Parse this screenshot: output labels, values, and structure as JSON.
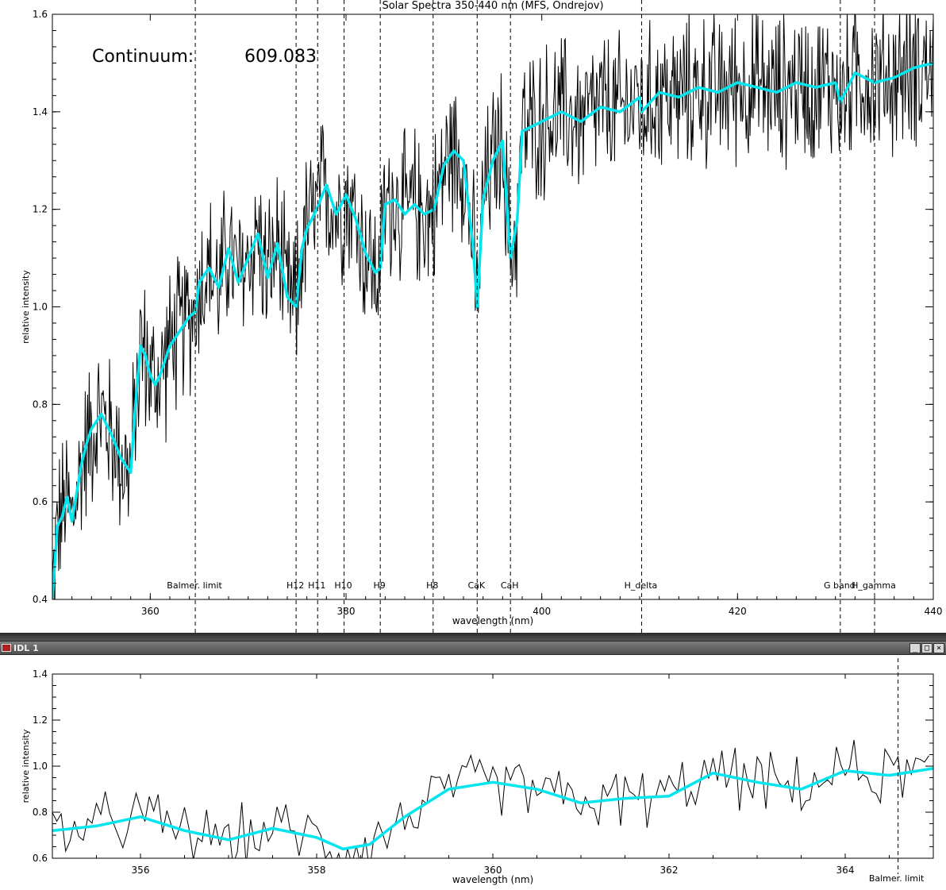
{
  "window": {
    "title": "IDL 1",
    "buttons": [
      "_",
      "□",
      "×"
    ]
  },
  "chart_data": [
    {
      "type": "line",
      "title": "Solar Spectra 350-440 nm (MFS, Ondrejov)",
      "xlabel": "wavelength (nm)",
      "ylabel": "relative intensity",
      "xlim": [
        350,
        440
      ],
      "ylim": [
        0.4,
        1.6
      ],
      "xticks": [
        360,
        380,
        400,
        420,
        440
      ],
      "yticks": [
        0.4,
        0.6,
        0.8,
        1.0,
        1.2,
        1.4,
        1.6
      ],
      "annotation": {
        "label": "Continuum:",
        "value": "609.083"
      },
      "vlines": [
        {
          "x": 364.6,
          "label": "Balmer. limit"
        },
        {
          "x": 374.9,
          "label": "H12"
        },
        {
          "x": 377.1,
          "label": "H11"
        },
        {
          "x": 379.8,
          "label": "H10"
        },
        {
          "x": 383.5,
          "label": "H9"
        },
        {
          "x": 388.9,
          "label": "H8"
        },
        {
          "x": 393.4,
          "label": "CaK"
        },
        {
          "x": 396.8,
          "label": "CaH"
        },
        {
          "x": 410.2,
          "label": "H_delta"
        },
        {
          "x": 430.5,
          "label": "G band"
        },
        {
          "x": 434.0,
          "label": "H_gamma"
        }
      ],
      "smooth_series": {
        "color": "#00e5ee",
        "x": [
          350,
          350.5,
          351,
          351.5,
          352,
          352.5,
          353,
          353.5,
          354,
          355,
          356,
          357,
          358,
          358.5,
          359,
          359.5,
          360,
          360.5,
          361,
          362,
          363,
          364,
          364.6,
          365,
          366,
          367,
          368,
          369,
          370,
          371,
          372,
          373,
          374,
          374.9,
          375.5,
          376,
          377,
          378,
          379,
          380,
          381,
          382,
          383,
          383.5,
          384,
          385,
          386,
          387,
          388,
          389,
          390,
          391,
          392,
          393,
          393.4,
          394,
          395,
          396,
          396.8,
          397.5,
          398,
          400,
          402,
          404,
          406,
          408,
          410,
          410.2,
          412,
          414,
          416,
          418,
          420,
          422,
          424,
          426,
          428,
          430,
          430.5,
          432,
          434,
          436,
          438,
          440
        ],
        "y": [
          0.4,
          0.55,
          0.57,
          0.61,
          0.56,
          0.62,
          0.68,
          0.72,
          0.75,
          0.78,
          0.74,
          0.69,
          0.66,
          0.8,
          0.92,
          0.9,
          0.86,
          0.84,
          0.86,
          0.92,
          0.95,
          0.98,
          0.99,
          1.05,
          1.08,
          1.04,
          1.12,
          1.05,
          1.1,
          1.15,
          1.06,
          1.13,
          1.02,
          1.0,
          1.12,
          1.16,
          1.2,
          1.25,
          1.19,
          1.23,
          1.18,
          1.11,
          1.07,
          1.08,
          1.21,
          1.22,
          1.19,
          1.21,
          1.19,
          1.2,
          1.29,
          1.32,
          1.3,
          1.12,
          1.0,
          1.22,
          1.3,
          1.34,
          1.1,
          1.18,
          1.36,
          1.38,
          1.4,
          1.38,
          1.41,
          1.4,
          1.43,
          1.4,
          1.44,
          1.43,
          1.45,
          1.44,
          1.46,
          1.45,
          1.44,
          1.46,
          1.45,
          1.46,
          1.42,
          1.48,
          1.46,
          1.47,
          1.49,
          1.5
        ]
      },
      "raw_series": {
        "color": "#000000",
        "description_note": "noisy spectrum"
      }
    },
    {
      "type": "line",
      "xlabel": "wavelength (nm)",
      "ylabel": "relative intensity",
      "xlim": [
        355,
        365
      ],
      "ylim": [
        0.6,
        1.4
      ],
      "xticks": [
        356,
        358,
        360,
        362,
        364
      ],
      "yticks": [
        0.6,
        0.8,
        1.0,
        1.2,
        1.4
      ],
      "vlines": [
        {
          "x": 364.6,
          "label": "Balmer. limit"
        }
      ],
      "smooth_series": {
        "color": "#00e5ee",
        "x": [
          355,
          355.5,
          356,
          356.5,
          357,
          357.5,
          358,
          358.3,
          358.6,
          359,
          359.5,
          360,
          360.5,
          361,
          361.5,
          362,
          362.5,
          363,
          363.5,
          364,
          364.5,
          365
        ],
        "y": [
          0.72,
          0.74,
          0.78,
          0.72,
          0.68,
          0.73,
          0.69,
          0.64,
          0.66,
          0.78,
          0.9,
          0.93,
          0.9,
          0.84,
          0.86,
          0.87,
          0.97,
          0.93,
          0.9,
          0.98,
          0.96,
          0.99
        ]
      },
      "raw_series": {
        "color": "#000000"
      }
    }
  ],
  "ui": {
    "plot_colors": {
      "background": "#ffffff",
      "axis": "#000000",
      "smooth": "#00e5ee",
      "raw": "#000000"
    }
  }
}
